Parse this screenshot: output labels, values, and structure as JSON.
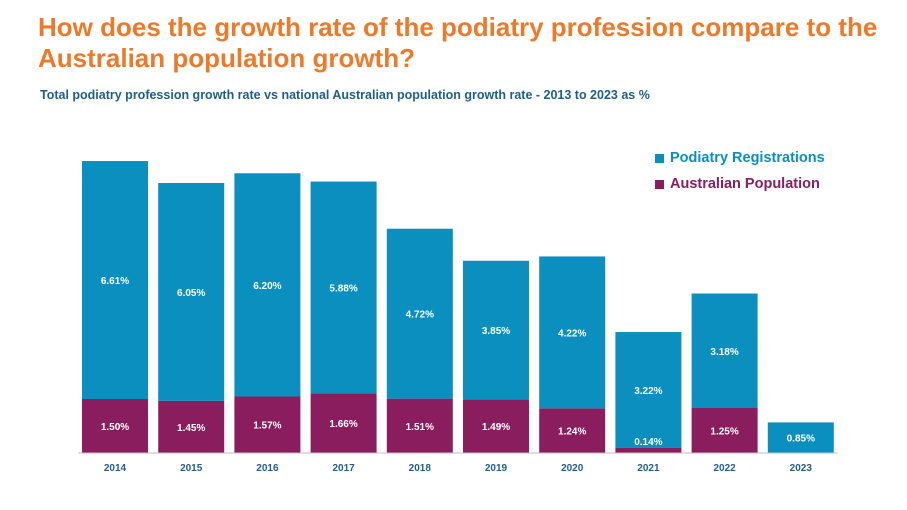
{
  "header": {
    "title": "How does the growth rate of the podiatry profession compare to the Australian population growth?",
    "subtitle": "Total podiatry profession growth rate vs national Australian population growth rate - 2013 to 2023 as %"
  },
  "colors": {
    "title": "#EC7A2A",
    "subtitle": "#1F5E8C",
    "podiatry": "#0A8FBE",
    "population": "#8A1D5E",
    "axis": "#BFBFBF"
  },
  "legend": {
    "position": "top-right",
    "items": [
      "Podiatry Registrations",
      "Australian Population"
    ]
  },
  "chart_data": {
    "type": "bar",
    "stacked": true,
    "categories": [
      "2014",
      "2015",
      "2016",
      "2017",
      "2018",
      "2019",
      "2020",
      "2021",
      "2022",
      "2023"
    ],
    "series": [
      {
        "name": "Australian Population",
        "values": [
          1.5,
          1.45,
          1.57,
          1.66,
          1.51,
          1.49,
          1.24,
          0.14,
          1.25,
          null
        ],
        "labels": [
          "1.50%",
          "1.45%",
          "1.57%",
          "1.66%",
          "1.51%",
          "1.49%",
          "1.24%",
          "0.14%",
          "1.25%",
          ""
        ]
      },
      {
        "name": "Podiatry Registrations",
        "values": [
          6.61,
          6.05,
          6.2,
          5.88,
          4.72,
          3.85,
          4.22,
          3.22,
          3.18,
          0.85
        ],
        "labels": [
          "6.61%",
          "6.05%",
          "6.20%",
          "5.88%",
          "4.72%",
          "3.85%",
          "4.22%",
          "3.22%",
          "3.18%",
          "0.85%"
        ]
      }
    ],
    "grid": false
  }
}
